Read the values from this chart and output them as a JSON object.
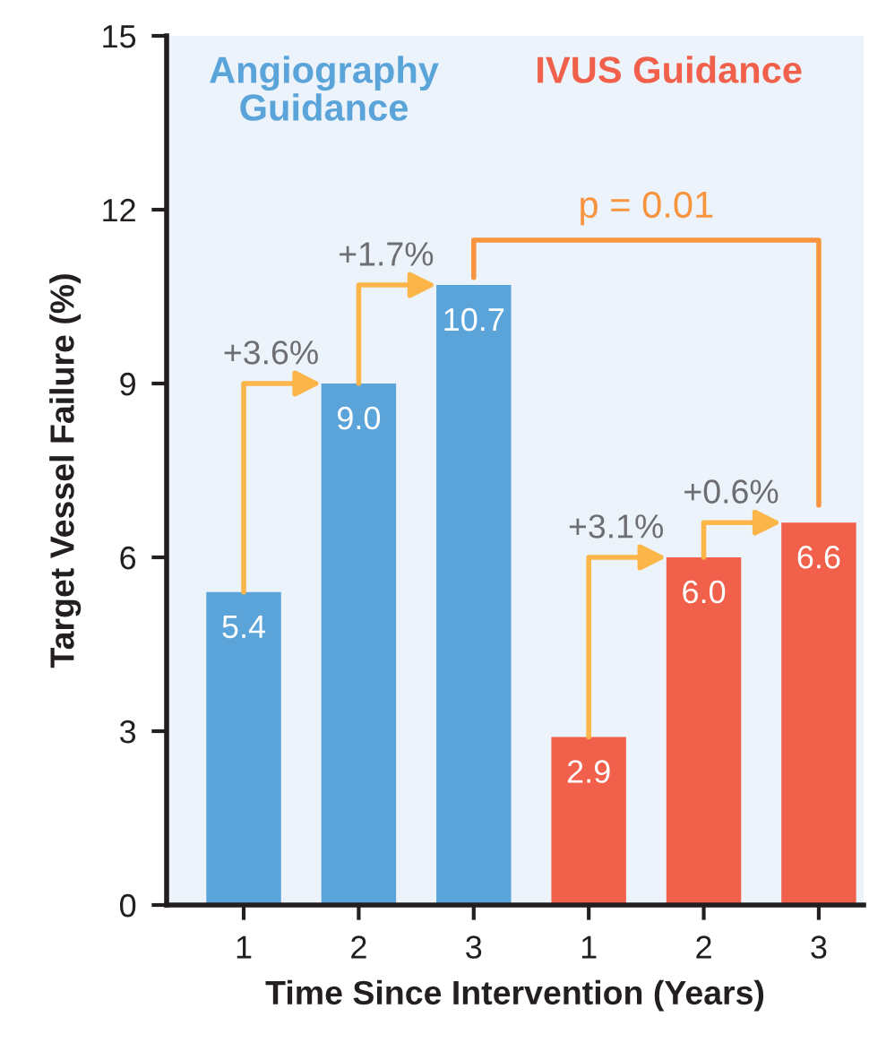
{
  "chart_data": {
    "type": "bar",
    "xlabel": "Time Since Intervention (Years)",
    "ylabel": "Target Vessel Failure (%)",
    "categories": [
      "1",
      "2",
      "3",
      "1",
      "2",
      "3"
    ],
    "series": [
      {
        "name": "Angiography Guidance",
        "color": "#5ba4da",
        "values": [
          5.4,
          9.0,
          10.7,
          null,
          null,
          null
        ],
        "value_labels": [
          "5.4",
          "9.0",
          "10.7",
          null,
          null,
          null
        ]
      },
      {
        "name": "IVUS Guidance",
        "color": "#f0604a",
        "values": [
          null,
          null,
          null,
          2.9,
          6.0,
          6.6
        ],
        "value_labels": [
          null,
          null,
          null,
          "2.9",
          "6.0",
          "6.6"
        ]
      }
    ],
    "ylim": [
      0,
      15
    ],
    "yticks": [
      0,
      3,
      6,
      9,
      12,
      15
    ],
    "annotations": [
      "+3.6%",
      "+1.7%",
      "+3.1%",
      "+0.6%",
      "p = 0.01"
    ]
  }
}
